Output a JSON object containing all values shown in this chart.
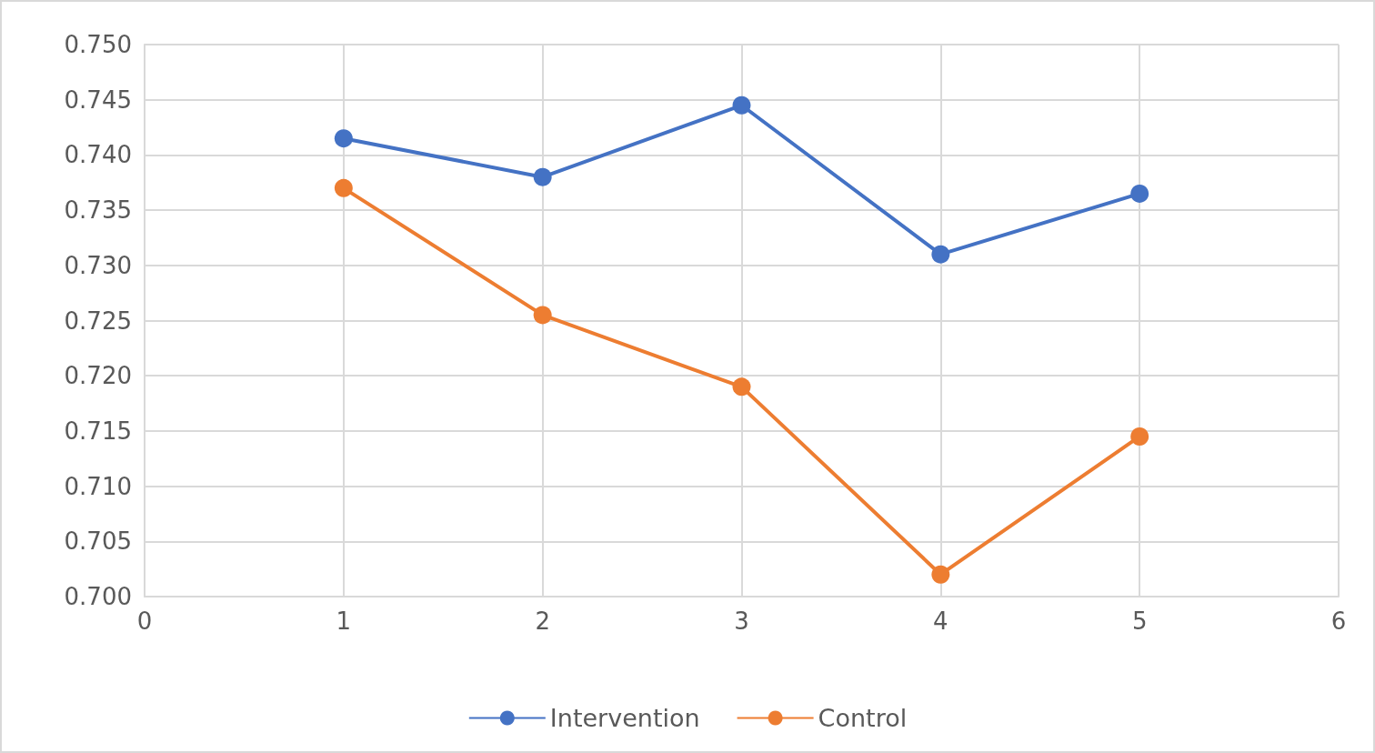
{
  "chart_data": {
    "type": "line",
    "x": [
      1,
      2,
      3,
      4,
      5
    ],
    "series": [
      {
        "name": "Intervention",
        "color": "#4472c4",
        "values": [
          0.7415,
          0.738,
          0.7445,
          0.731,
          0.7365
        ]
      },
      {
        "name": "Control",
        "color": "#ed7d31",
        "values": [
          0.737,
          0.7255,
          0.719,
          0.702,
          0.7145
        ]
      }
    ],
    "xlim": [
      0,
      6
    ],
    "xticks": [
      0,
      1,
      2,
      3,
      4,
      5,
      6
    ],
    "ylim": [
      0.7,
      0.75
    ],
    "yticks": [
      {
        "value": 0.7,
        "label": "0.700"
      },
      {
        "value": 0.705,
        "label": "0.705"
      },
      {
        "value": 0.71,
        "label": "0.710"
      },
      {
        "value": 0.715,
        "label": "0.715"
      },
      {
        "value": 0.72,
        "label": "0.720"
      },
      {
        "value": 0.725,
        "label": "0.725"
      },
      {
        "value": 0.73,
        "label": "0.730"
      },
      {
        "value": 0.735,
        "label": "0.735"
      },
      {
        "value": 0.74,
        "label": "0.740"
      },
      {
        "value": 0.745,
        "label": "0.745"
      },
      {
        "value": 0.75,
        "label": "0.750"
      }
    ],
    "grid": true,
    "legend": "bottom",
    "marker": "circle",
    "line_style": "solid"
  }
}
